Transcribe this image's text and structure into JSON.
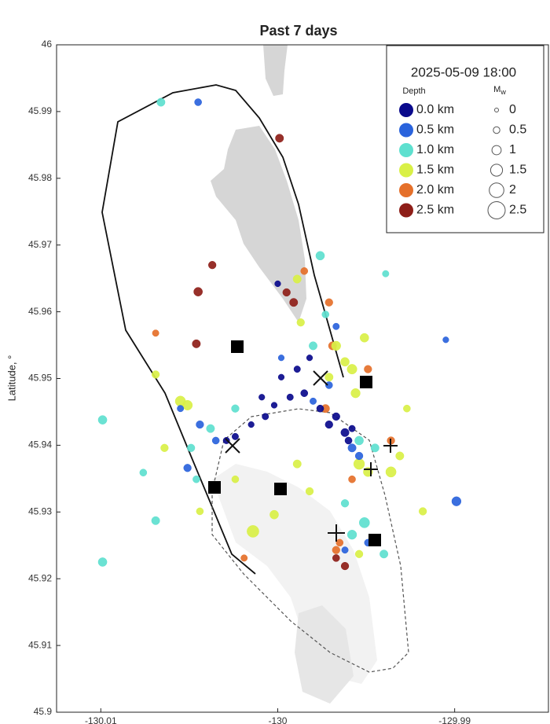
{
  "chart_data": {
    "type": "scatter",
    "title": "Past 7 days",
    "ylabel": "Latitude, °",
    "xlim": [
      -130.0125,
      -129.9847
    ],
    "ylim": [
      45.9,
      46
    ],
    "xticks": [
      -130.01,
      -130,
      -129.99
    ],
    "yticks": [
      45.9,
      45.91,
      45.92,
      45.93,
      45.94,
      45.95,
      45.96,
      45.97,
      45.98,
      45.99,
      46
    ],
    "legend": {
      "title": "2025-05-09 18:00",
      "depth_label": "Depth",
      "size_label": "M",
      "size_label_sub": "w",
      "sizes": [
        0,
        0.5,
        1,
        1.5,
        2,
        2.5
      ]
    },
    "series": [
      {
        "name": "0.0 km",
        "color": "#0a0a8c",
        "x": [
          -130.0,
          -129.9989,
          -129.9982,
          -129.9985,
          -129.9993,
          -130.0002,
          -130.0007,
          -130.0015,
          -130.0024,
          -129.9976,
          -129.9971,
          -129.9962,
          -129.996,
          -129.9958,
          -129.9967,
          -130.0009,
          -130.0029,
          -129.9998
        ],
        "y": [
          45.9642,
          45.9514,
          45.9531,
          45.9478,
          45.9472,
          45.946,
          45.9443,
          45.9431,
          45.9413,
          45.9455,
          45.9431,
          45.9419,
          45.9407,
          45.9425,
          45.9443,
          45.9472,
          45.9407,
          45.9502
        ],
        "mw": [
          0.4,
          0.5,
          0.4,
          0.6,
          0.5,
          0.4,
          0.5,
          0.4,
          0.5,
          0.6,
          0.7,
          0.8,
          0.6,
          0.5,
          0.7,
          0.4,
          0.5,
          0.4
        ]
      },
      {
        "name": "0.5 km",
        "color": "#2a63dc",
        "x": [
          -130.0045,
          -129.9899,
          -129.9905,
          -129.9971,
          -129.998,
          -130.0044,
          -130.0035,
          -130.0051,
          -130.0055,
          -129.9958,
          -129.9954,
          -129.9949,
          -129.9962,
          -129.9967,
          -129.9998
        ],
        "y": [
          45.9914,
          45.9316,
          45.9558,
          45.949,
          45.9466,
          45.9431,
          45.9407,
          45.9366,
          45.9455,
          45.9396,
          45.9384,
          45.9254,
          45.9243,
          45.9578,
          45.9531
        ],
        "mw": [
          0.6,
          1.0,
          0.4,
          0.6,
          0.5,
          0.7,
          0.6,
          0.7,
          0.5,
          0.8,
          0.7,
          0.6,
          0.5,
          0.5,
          0.4
        ]
      },
      {
        "name": "1.0 km",
        "color": "#5ee0cf",
        "x": [
          -130.0066,
          -130.0099,
          -130.0099,
          -130.0069,
          -130.0076,
          -129.9976,
          -129.9939,
          -130.0024,
          -130.0038,
          -130.0049,
          -129.9973,
          -129.998,
          -129.9951,
          -129.9958,
          -129.994,
          -129.9954,
          -129.9945,
          -130.0046,
          -129.9962
        ],
        "y": [
          45.9914,
          45.9225,
          45.9438,
          45.9287,
          45.9359,
          45.9684,
          45.9657,
          45.9455,
          45.9425,
          45.9396,
          45.9596,
          45.9549,
          45.9284,
          45.9266,
          45.9237,
          45.9407,
          45.9396,
          45.9349,
          45.9313
        ],
        "mw": [
          0.8,
          0.9,
          0.9,
          0.8,
          0.6,
          0.9,
          0.5,
          0.7,
          0.8,
          0.7,
          0.6,
          0.8,
          1.2,
          1.0,
          0.8,
          0.9,
          0.8,
          0.6,
          0.7
        ]
      },
      {
        "name": "1.5 km",
        "color": "#d9f046",
        "x": [
          -130.0069,
          -130.0055,
          -130.0051,
          -129.9989,
          -129.9987,
          -129.9967,
          -129.9962,
          -129.9958,
          -129.9971,
          -129.9954,
          -129.9949,
          -129.9931,
          -129.9936,
          -129.9927,
          -129.9918,
          -130.0014,
          -130.0002,
          -129.9989,
          -129.9982,
          -130.0024,
          -129.9954,
          -130.0044,
          -130.0064,
          -129.9951,
          -129.9956
        ],
        "y": [
          45.9506,
          45.9466,
          45.946,
          45.9649,
          45.9584,
          45.9549,
          45.9525,
          45.9514,
          45.9502,
          45.9372,
          45.936,
          45.9384,
          45.936,
          45.9455,
          45.9301,
          45.9271,
          45.9296,
          45.9372,
          45.9331,
          45.9349,
          45.9237,
          45.9301,
          45.9396,
          45.9561,
          45.9478
        ],
        "mw": [
          0.7,
          1.2,
          1.1,
          0.8,
          0.7,
          1.0,
          0.9,
          1.1,
          0.8,
          1.3,
          1.0,
          0.8,
          1.2,
          0.6,
          0.7,
          1.5,
          0.9,
          0.8,
          0.7,
          0.6,
          0.7,
          0.6,
          0.7,
          0.9,
          1.0
        ]
      },
      {
        "name": "2.0 km",
        "color": "#e5702a",
        "x": [
          -130.0069,
          -129.9985,
          -129.9971,
          -129.9969,
          -129.9949,
          -129.9965,
          -130.0019,
          -129.9967,
          -129.9973,
          -129.9958,
          -129.9936
        ],
        "y": [
          45.9568,
          45.9661,
          45.9614,
          45.9549,
          45.9514,
          45.9254,
          45.9231,
          45.9243,
          45.9455,
          45.9349,
          45.9407
        ],
        "mw": [
          0.5,
          0.6,
          0.7,
          0.8,
          0.7,
          0.6,
          0.5,
          0.7,
          0.8,
          0.6,
          0.7
        ]
      },
      {
        "name": "2.5 km",
        "color": "#8e1e18",
        "x": [
          -129.9999,
          -130.0037,
          -130.0045,
          -130.0046,
          -129.9995,
          -129.9991,
          -129.9967,
          -129.9962
        ],
        "y": [
          45.986,
          45.967,
          45.963,
          45.9552,
          45.9629,
          45.9614,
          45.9231,
          45.9219
        ],
        "mw": [
          0.8,
          0.7,
          0.9,
          0.8,
          0.7,
          0.8,
          0.6,
          0.7
        ]
      }
    ]
  }
}
